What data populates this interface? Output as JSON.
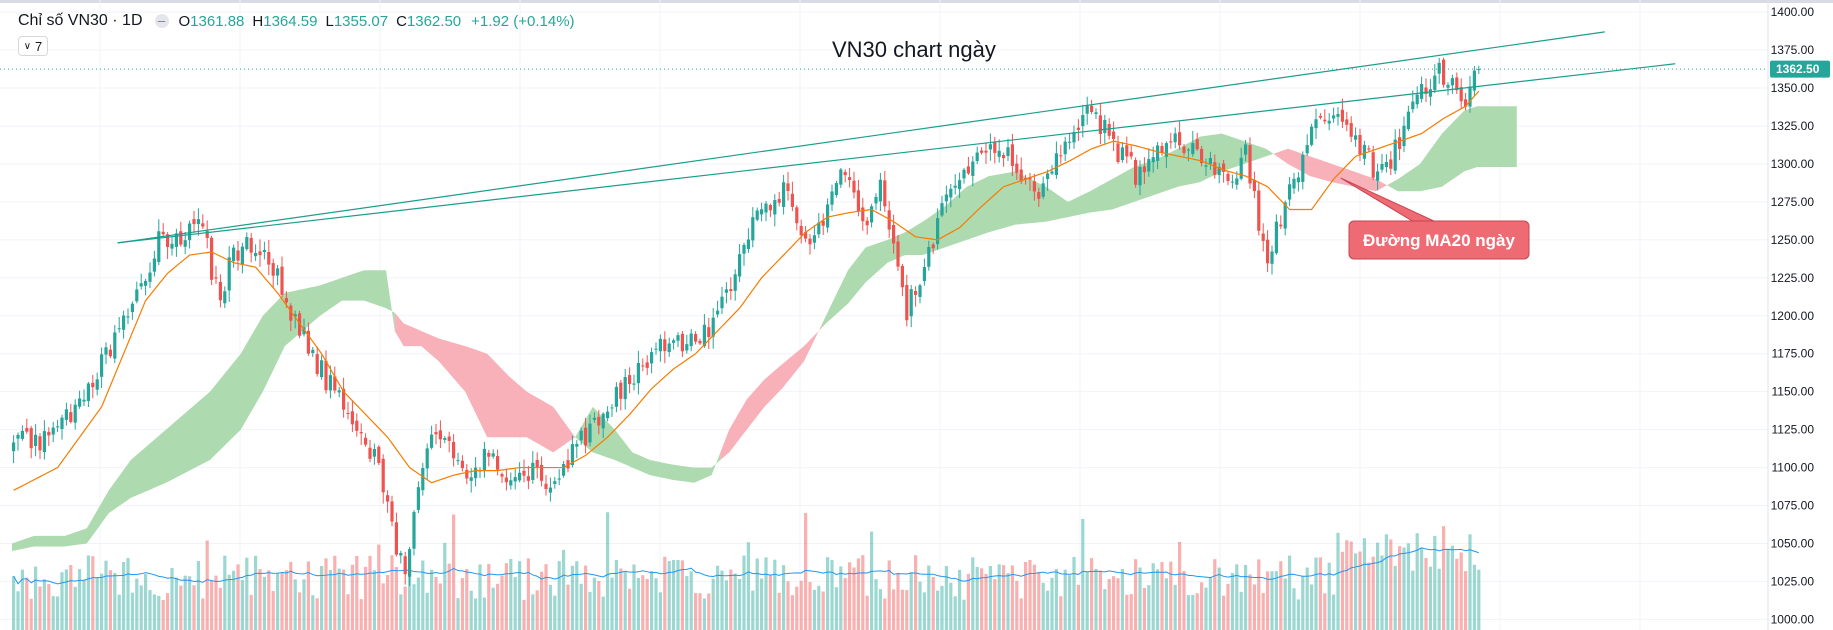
{
  "legend": {
    "symbol": "Chỉ số VN30 · 1D",
    "open_label": "O",
    "open": "1361.88",
    "high_label": "H",
    "high": "1364.59",
    "low_label": "L",
    "low": "1355.07",
    "close_label": "C",
    "close": "1362.50",
    "change": "+1.92 (+0.14%)"
  },
  "collapse_button": {
    "count": "7"
  },
  "colors": {
    "up": "#26a69a",
    "down": "#ef5350",
    "cloud_bull": "#a5d6a7",
    "cloud_bear": "#f7a9b0",
    "ma20": "#f57c00",
    "volume_ma": "#2196f3",
    "trendline": "#1b9e8c"
  },
  "chart_data": {
    "type": "candlestick",
    "title": "VN30 chart ngày",
    "annotation": "Đường MA20 ngày",
    "last_price": 1362.5,
    "last_price_label": "1362.50",
    "ylim": [
      993,
      1408
    ],
    "yticks": [
      1000,
      1025,
      1050,
      1075,
      1100,
      1125,
      1150,
      1175,
      1200,
      1225,
      1250,
      1275,
      1300,
      1325,
      1350,
      1375,
      1400
    ],
    "ytick_labels": [
      "1000.00",
      "1025.00",
      "1050.00",
      "1075.00",
      "1100.00",
      "1125.00",
      "1150.00",
      "1175.00",
      "1200.00",
      "1225.00",
      "1250.00",
      "1275.00",
      "1300.00",
      "1325.00",
      "1350.00",
      "1375.00",
      "1400.00"
    ],
    "price_anchors": [
      [
        0,
        1115
      ],
      [
        8,
        1120
      ],
      [
        15,
        1140
      ],
      [
        25,
        1195
      ],
      [
        33,
        1250
      ],
      [
        36,
        1252
      ],
      [
        40,
        1255
      ],
      [
        43,
        1258
      ],
      [
        45,
        1230
      ],
      [
        47,
        1210
      ],
      [
        49,
        1238
      ],
      [
        53,
        1250
      ],
      [
        58,
        1240
      ],
      [
        63,
        1200
      ],
      [
        68,
        1175
      ],
      [
        73,
        1148
      ],
      [
        78,
        1128
      ],
      [
        83,
        1100
      ],
      [
        87,
        1050
      ],
      [
        89,
        1030
      ],
      [
        92,
        1095
      ],
      [
        96,
        1125
      ],
      [
        100,
        1110
      ],
      [
        104,
        1095
      ],
      [
        108,
        1112
      ],
      [
        112,
        1090
      ],
      [
        117,
        1098
      ],
      [
        122,
        1090
      ],
      [
        128,
        1115
      ],
      [
        135,
        1140
      ],
      [
        140,
        1160
      ],
      [
        146,
        1175
      ],
      [
        150,
        1185
      ],
      [
        155,
        1180
      ],
      [
        160,
        1200
      ],
      [
        165,
        1238
      ],
      [
        170,
        1270
      ],
      [
        175,
        1285
      ],
      [
        178,
        1265
      ],
      [
        181,
        1250
      ],
      [
        185,
        1272
      ],
      [
        188,
        1302
      ],
      [
        191,
        1285
      ],
      [
        194,
        1260
      ],
      [
        197,
        1282
      ],
      [
        200,
        1240
      ],
      [
        203,
        1205
      ],
      [
        206,
        1222
      ],
      [
        210,
        1262
      ],
      [
        215,
        1292
      ],
      [
        220,
        1303
      ],
      [
        224,
        1312
      ],
      [
        228,
        1300
      ],
      [
        232,
        1280
      ],
      [
        236,
        1298
      ],
      [
        240,
        1320
      ],
      [
        244,
        1336
      ],
      [
        248,
        1322
      ],
      [
        252,
        1305
      ],
      [
        256,
        1290
      ],
      [
        260,
        1306
      ],
      [
        264,
        1314
      ],
      [
        268,
        1310
      ],
      [
        272,
        1300
      ],
      [
        277,
        1285
      ],
      [
        280,
        1305
      ],
      [
        283,
        1260
      ],
      [
        285,
        1238
      ],
      [
        288,
        1262
      ],
      [
        291,
        1290
      ],
      [
        295,
        1325
      ],
      [
        299,
        1330
      ],
      [
        303,
        1322
      ],
      [
        307,
        1310
      ],
      [
        310,
        1292
      ],
      [
        313,
        1303
      ],
      [
        316,
        1325
      ],
      [
        319,
        1342
      ],
      [
        322,
        1356
      ],
      [
        325,
        1360
      ],
      [
        327,
        1352
      ],
      [
        329,
        1338
      ],
      [
        331,
        1345
      ],
      [
        333,
        1362.5
      ]
    ],
    "ma20_anchors": [
      [
        0,
        1085
      ],
      [
        10,
        1100
      ],
      [
        20,
        1140
      ],
      [
        30,
        1210
      ],
      [
        35,
        1228
      ],
      [
        40,
        1240
      ],
      [
        45,
        1242
      ],
      [
        50,
        1235
      ],
      [
        55,
        1232
      ],
      [
        60,
        1215
      ],
      [
        65,
        1195
      ],
      [
        70,
        1175
      ],
      [
        75,
        1150
      ],
      [
        80,
        1135
      ],
      [
        85,
        1120
      ],
      [
        90,
        1100
      ],
      [
        95,
        1090
      ],
      [
        100,
        1095
      ],
      [
        105,
        1098
      ],
      [
        110,
        1098
      ],
      [
        115,
        1100
      ],
      [
        120,
        1100
      ],
      [
        125,
        1100
      ],
      [
        130,
        1108
      ],
      [
        135,
        1120
      ],
      [
        140,
        1135
      ],
      [
        145,
        1152
      ],
      [
        150,
        1165
      ],
      [
        155,
        1175
      ],
      [
        160,
        1190
      ],
      [
        165,
        1205
      ],
      [
        170,
        1225
      ],
      [
        175,
        1240
      ],
      [
        180,
        1255
      ],
      [
        185,
        1265
      ],
      [
        190,
        1268
      ],
      [
        195,
        1270
      ],
      [
        200,
        1262
      ],
      [
        205,
        1252
      ],
      [
        210,
        1250
      ],
      [
        215,
        1258
      ],
      [
        220,
        1272
      ],
      [
        225,
        1285
      ],
      [
        230,
        1290
      ],
      [
        235,
        1295
      ],
      [
        240,
        1302
      ],
      [
        245,
        1310
      ],
      [
        250,
        1315
      ],
      [
        255,
        1312
      ],
      [
        260,
        1308
      ],
      [
        265,
        1305
      ],
      [
        270,
        1302
      ],
      [
        275,
        1296
      ],
      [
        280,
        1292
      ],
      [
        285,
        1285
      ],
      [
        290,
        1270
      ],
      [
        295,
        1270
      ],
      [
        300,
        1290
      ],
      [
        305,
        1305
      ],
      [
        310,
        1310
      ],
      [
        315,
        1315
      ],
      [
        320,
        1320
      ],
      [
        325,
        1330
      ],
      [
        330,
        1338
      ],
      [
        333,
        1348
      ]
    ],
    "cloud_a_anchors": [
      [
        0,
        1050
      ],
      [
        5,
        1055
      ],
      [
        12,
        1055
      ],
      [
        17,
        1060
      ],
      [
        22,
        1085
      ],
      [
        27,
        1105
      ],
      [
        35,
        1125
      ],
      [
        45,
        1150
      ],
      [
        52,
        1175
      ],
      [
        57,
        1200
      ],
      [
        62,
        1215
      ],
      [
        70,
        1220
      ],
      [
        75,
        1225
      ],
      [
        80,
        1230
      ],
      [
        85,
        1230
      ],
      [
        87,
        1190
      ],
      [
        89,
        1180
      ],
      [
        93,
        1180
      ],
      [
        97,
        1170
      ],
      [
        103,
        1150
      ],
      [
        108,
        1120
      ],
      [
        113,
        1120
      ],
      [
        117,
        1120
      ],
      [
        123,
        1110
      ],
      [
        128,
        1120
      ],
      [
        132,
        1140
      ],
      [
        137,
        1125
      ],
      [
        141,
        1110
      ],
      [
        145,
        1105
      ],
      [
        150,
        1102
      ],
      [
        155,
        1100
      ],
      [
        159,
        1100
      ],
      [
        163,
        1110
      ],
      [
        167,
        1125
      ],
      [
        171,
        1140
      ],
      [
        175,
        1152
      ],
      [
        180,
        1170
      ],
      [
        185,
        1200
      ],
      [
        190,
        1230
      ],
      [
        194,
        1245
      ],
      [
        199,
        1250
      ],
      [
        203,
        1255
      ],
      [
        207,
        1262
      ],
      [
        212,
        1272
      ],
      [
        217,
        1285
      ],
      [
        222,
        1292
      ],
      [
        228,
        1295
      ],
      [
        235,
        1285
      ],
      [
        240,
        1275
      ],
      [
        245,
        1282
      ],
      [
        250,
        1290
      ],
      [
        255,
        1298
      ],
      [
        260,
        1303
      ],
      [
        265,
        1310
      ],
      [
        270,
        1318
      ],
      [
        275,
        1320
      ],
      [
        280,
        1315
      ],
      [
        285,
        1310
      ],
      [
        290,
        1300
      ],
      [
        295,
        1292
      ],
      [
        300,
        1288
      ],
      [
        305,
        1285
      ],
      [
        310,
        1282
      ],
      [
        315,
        1290
      ],
      [
        320,
        1300
      ],
      [
        325,
        1320
      ],
      [
        330,
        1335
      ],
      [
        333,
        1338
      ],
      [
        342,
        1338
      ]
    ],
    "cloud_b_anchors": [
      [
        0,
        1045
      ],
      [
        5,
        1048
      ],
      [
        12,
        1048
      ],
      [
        17,
        1050
      ],
      [
        22,
        1070
      ],
      [
        27,
        1080
      ],
      [
        35,
        1090
      ],
      [
        45,
        1105
      ],
      [
        52,
        1125
      ],
      [
        57,
        1150
      ],
      [
        62,
        1180
      ],
      [
        70,
        1200
      ],
      [
        75,
        1210
      ],
      [
        80,
        1210
      ],
      [
        85,
        1205
      ],
      [
        87,
        1202
      ],
      [
        89,
        1195
      ],
      [
        93,
        1190
      ],
      [
        97,
        1185
      ],
      [
        103,
        1180
      ],
      [
        108,
        1175
      ],
      [
        113,
        1160
      ],
      [
        117,
        1150
      ],
      [
        123,
        1140
      ],
      [
        128,
        1120
      ],
      [
        132,
        1110
      ],
      [
        137,
        1105
      ],
      [
        141,
        1100
      ],
      [
        145,
        1095
      ],
      [
        150,
        1092
      ],
      [
        155,
        1090
      ],
      [
        159,
        1095
      ],
      [
        163,
        1125
      ],
      [
        167,
        1145
      ],
      [
        171,
        1158
      ],
      [
        175,
        1168
      ],
      [
        180,
        1180
      ],
      [
        185,
        1195
      ],
      [
        190,
        1208
      ],
      [
        194,
        1222
      ],
      [
        199,
        1235
      ],
      [
        203,
        1240
      ],
      [
        207,
        1240
      ],
      [
        212,
        1245
      ],
      [
        217,
        1250
      ],
      [
        222,
        1255
      ],
      [
        228,
        1260
      ],
      [
        235,
        1262
      ],
      [
        240,
        1265
      ],
      [
        245,
        1268
      ],
      [
        250,
        1270
      ],
      [
        255,
        1275
      ],
      [
        260,
        1280
      ],
      [
        265,
        1285
      ],
      [
        270,
        1288
      ],
      [
        275,
        1295
      ],
      [
        280,
        1300
      ],
      [
        285,
        1305
      ],
      [
        290,
        1310
      ],
      [
        295,
        1305
      ],
      [
        300,
        1300
      ],
      [
        305,
        1295
      ],
      [
        310,
        1290
      ],
      [
        315,
        1282
      ],
      [
        320,
        1282
      ],
      [
        325,
        1285
      ],
      [
        330,
        1295
      ],
      [
        333,
        1298
      ],
      [
        342,
        1298
      ]
    ],
    "trendlines": [
      {
        "x": [
          24,
          362
        ],
        "y": [
          1248,
          1387
        ]
      },
      {
        "x": [
          24,
          378
        ],
        "y": [
          1248,
          1366
        ]
      }
    ],
    "n_bars": 334
  }
}
